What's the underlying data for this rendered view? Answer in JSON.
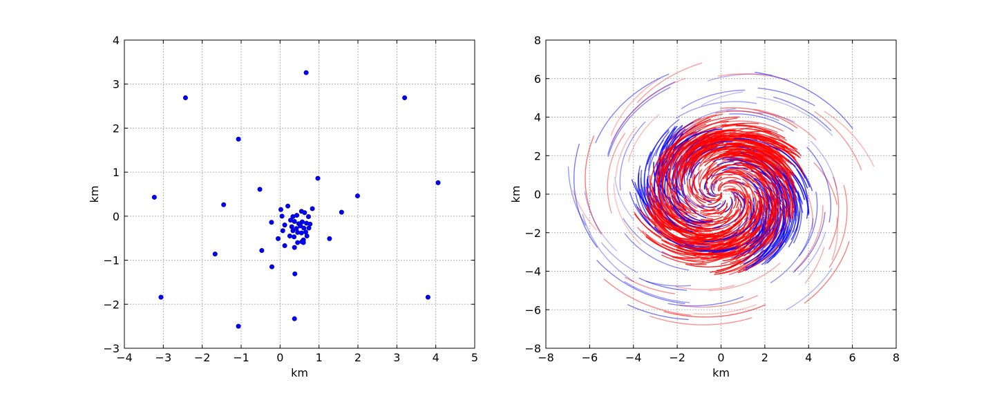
{
  "chart_data": [
    {
      "type": "scatter",
      "xlabel": "km",
      "ylabel": "km",
      "xlim": [
        -4,
        5
      ],
      "ylim": [
        -3,
        4
      ],
      "xticks": [
        "−4",
        "−3",
        "−2",
        "−1",
        "0",
        "1",
        "2",
        "3",
        "4",
        "5"
      ],
      "yticks": [
        "4",
        "3",
        "2",
        "1",
        "0",
        "−1",
        "−2",
        "−3"
      ],
      "grid": true,
      "color": "#0000ff",
      "series": [
        {
          "x": [
            0.67,
            -2.43,
            3.2,
            -1.07,
            4.06,
            0.97,
            -3.23,
            -0.52,
            -1.45,
            1.99,
            1.58,
            0.83,
            0.2,
            0.02,
            1.27,
            -0.05,
            -0.21,
            -0.47,
            -1.67,
            -0.22,
            0.38,
            -3.06,
            3.8,
            -1.07,
            0.37,
            0.33,
            0.43,
            0.55,
            0.63,
            0.73,
            0.27,
            0.37,
            0.48,
            0.57,
            0.68,
            0.77,
            0.12,
            0.3,
            0.42,
            0.52,
            0.61,
            0.74,
            0.07,
            0.33,
            0.45,
            0.55,
            0.66,
            0.25,
            0.36,
            0.6,
            0.69,
            0.37,
            0.45,
            0.12,
            0.56,
            0.6,
            0.05
          ],
          "y": [
            3.26,
            2.69,
            2.69,
            1.75,
            0.76,
            0.86,
            0.43,
            0.61,
            0.26,
            0.46,
            0.09,
            0.17,
            0.23,
            0.15,
            -0.51,
            -0.51,
            -1.15,
            -0.78,
            -0.86,
            -0.14,
            -1.31,
            -1.84,
            -1.84,
            -2.5,
            -2.33,
            -0.01,
            0.02,
            0.11,
            0.08,
            -0.01,
            -0.09,
            -0.12,
            -0.17,
            -0.13,
            -0.16,
            -0.18,
            -0.2,
            -0.24,
            -0.28,
            -0.22,
            -0.27,
            -0.27,
            -0.33,
            -0.33,
            -0.37,
            -0.38,
            -0.36,
            -0.45,
            -0.47,
            -0.54,
            -0.45,
            -0.71,
            -0.6,
            -0.67,
            -0.58,
            -0.6,
            0.0
          ]
        }
      ]
    },
    {
      "type": "line",
      "xlabel": "km",
      "ylabel": "km",
      "xlim": [
        -8,
        8
      ],
      "ylim": [
        -8,
        8
      ],
      "xticks": [
        "−8",
        "−6",
        "−4",
        "−2",
        "0",
        "2",
        "4",
        "6",
        "8"
      ],
      "yticks": [
        "8",
        "6",
        "4",
        "2",
        "0",
        "−2",
        "−4",
        "−6",
        "−8"
      ],
      "grid": true,
      "colors": [
        "#ff0000",
        "#0000ff"
      ],
      "description_mode": "spiral vortex of trajectory arcs (red and blue), dense within radius ~4 km, sparse arcs out to ~7 km"
    }
  ]
}
